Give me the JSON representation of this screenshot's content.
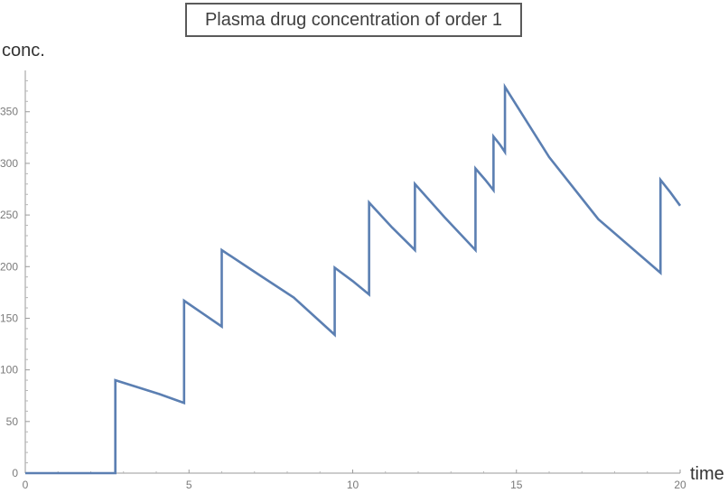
{
  "chart_data": {
    "type": "line",
    "title": "Plasma drug concentration of order 1",
    "xlabel": "time",
    "ylabel": "conc.",
    "xlim": [
      0,
      20
    ],
    "ylim": [
      0,
      390
    ],
    "xticks": [
      0,
      5,
      10,
      15,
      20
    ],
    "yticks": [
      0,
      50,
      100,
      150,
      200,
      250,
      300,
      350
    ],
    "grid": false,
    "legend": "none",
    "series": [
      {
        "color": "#5b7fb2",
        "points": [
          [
            0,
            0
          ],
          [
            2.75,
            0
          ],
          [
            2.75,
            90
          ],
          [
            3.4,
            83.5
          ],
          [
            4.1,
            76.5
          ],
          [
            4.85,
            68
          ],
          [
            4.85,
            167
          ],
          [
            5.4,
            155
          ],
          [
            6.0,
            142
          ],
          [
            6.0,
            216
          ],
          [
            7.0,
            195
          ],
          [
            8.2,
            170
          ],
          [
            9.45,
            134
          ],
          [
            9.45,
            199
          ],
          [
            10.0,
            186
          ],
          [
            10.5,
            173
          ],
          [
            10.5,
            262
          ],
          [
            11.2,
            238
          ],
          [
            11.9,
            216
          ],
          [
            11.9,
            280
          ],
          [
            12.8,
            248
          ],
          [
            13.75,
            216
          ],
          [
            13.75,
            295
          ],
          [
            14.05,
            284
          ],
          [
            14.3,
            274
          ],
          [
            14.3,
            326
          ],
          [
            14.5,
            318
          ],
          [
            14.65,
            311
          ],
          [
            14.65,
            374
          ],
          [
            16.0,
            306
          ],
          [
            17.5,
            246
          ],
          [
            19.4,
            194
          ],
          [
            19.4,
            284
          ],
          [
            19.7,
            272
          ],
          [
            20.0,
            259
          ]
        ]
      }
    ]
  }
}
